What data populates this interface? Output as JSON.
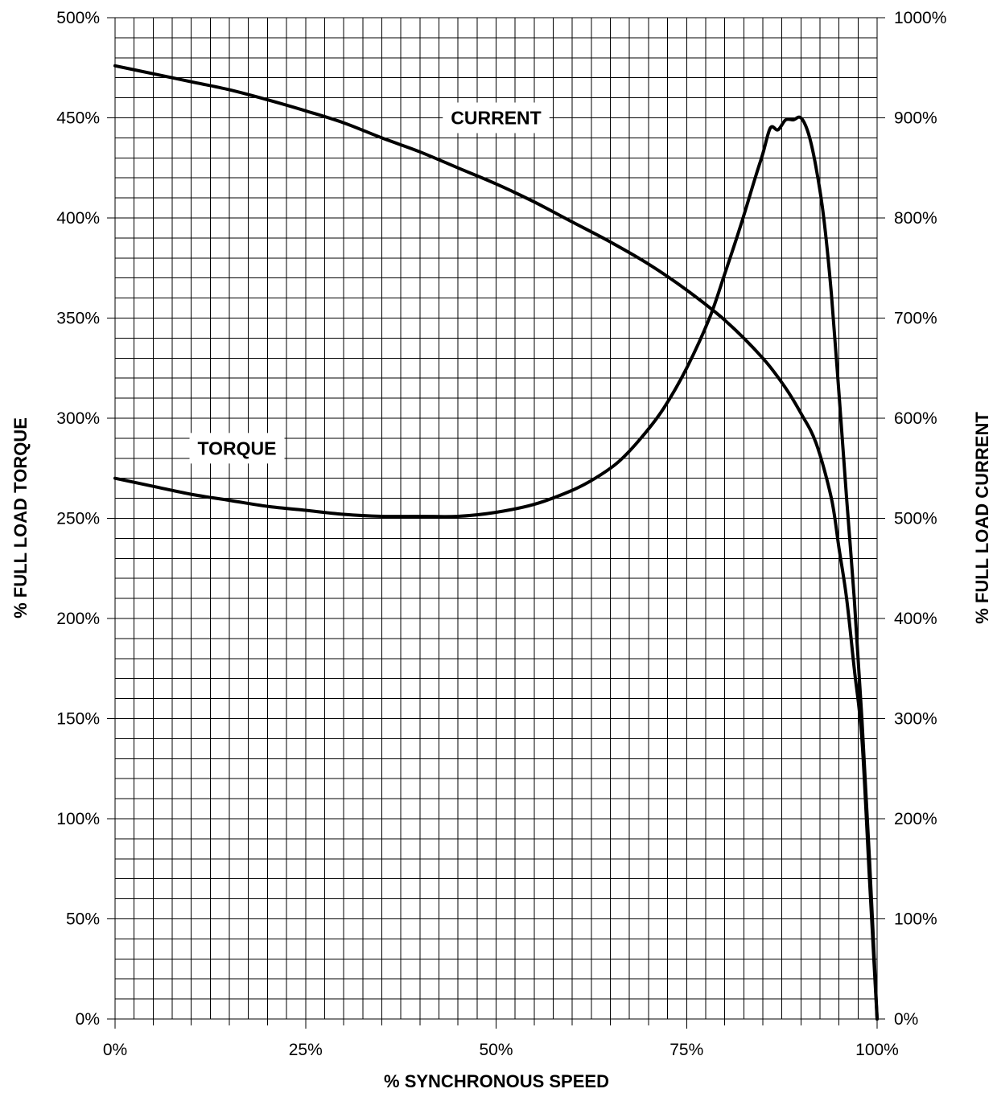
{
  "chart_data": {
    "type": "line",
    "title": "",
    "xlabel": "% SYNCHRONOUS SPEED",
    "ylabel": "% FULL LOAD TORQUE",
    "y2label": "% FULL LOAD CURRENT",
    "xlim": [
      0,
      100
    ],
    "ylim": [
      0,
      500
    ],
    "y2lim": [
      0,
      1000
    ],
    "grid": true,
    "legend": "none",
    "x_tick_labels": [
      "0%",
      "25%",
      "50%",
      "75%",
      "100%"
    ],
    "x_tick_values": [
      0,
      25,
      50,
      75,
      100
    ],
    "y_tick_labels": [
      "0%",
      "50%",
      "100%",
      "150%",
      "200%",
      "250%",
      "300%",
      "350%",
      "400%",
      "450%",
      "500%"
    ],
    "y_tick_values": [
      0,
      50,
      100,
      150,
      200,
      250,
      300,
      350,
      400,
      450,
      500
    ],
    "y2_tick_labels": [
      "0%",
      "100%",
      "200%",
      "300%",
      "400%",
      "500%",
      "600%",
      "700%",
      "800%",
      "900%",
      "1000%"
    ],
    "y2_tick_values": [
      0,
      100,
      200,
      300,
      400,
      500,
      600,
      700,
      800,
      900,
      1000
    ],
    "series": [
      {
        "name": "CURRENT",
        "axis": "y2",
        "x": [
          0,
          5,
          10,
          15,
          20,
          25,
          30,
          35,
          40,
          45,
          50,
          55,
          60,
          65,
          70,
          75,
          80,
          85,
          88,
          90,
          92,
          94,
          95,
          96,
          97,
          98,
          99,
          100
        ],
        "y": [
          952,
          944,
          936,
          928,
          918,
          907,
          895,
          880,
          866,
          850,
          834,
          816,
          796,
          776,
          754,
          728,
          698,
          660,
          630,
          605,
          575,
          520,
          470,
          420,
          350,
          280,
          140,
          0
        ]
      },
      {
        "name": "TORQUE",
        "axis": "y",
        "x": [
          0,
          5,
          10,
          15,
          20,
          25,
          30,
          35,
          40,
          45,
          50,
          55,
          60,
          63,
          66,
          69,
          72,
          75,
          78,
          80,
          82,
          84,
          85,
          86,
          87,
          88,
          89,
          90,
          91,
          92,
          93,
          94,
          95,
          96,
          97,
          98,
          99,
          100
        ],
        "y": [
          270,
          266,
          262,
          259,
          256,
          254,
          252,
          251,
          251,
          251,
          253,
          257,
          264,
          270,
          278,
          290,
          305,
          325,
          350,
          372,
          395,
          420,
          432,
          445,
          444,
          449,
          449,
          450,
          442,
          425,
          400,
          362,
          312,
          260,
          210,
          150,
          80,
          0
        ]
      }
    ],
    "annotations": [
      {
        "text": "CURRENT",
        "x": 50,
        "y": 450
      },
      {
        "text": "TORQUE",
        "x": 16,
        "y": 285
      }
    ]
  }
}
